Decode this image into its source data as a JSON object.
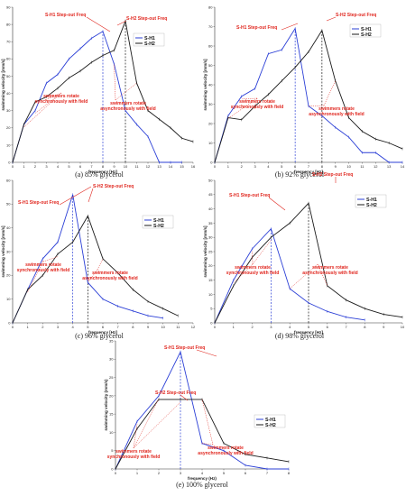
{
  "colors": {
    "s1": "#2b3fd6",
    "s2": "#1a1a1a",
    "annot": "#e0261e",
    "axis": "#333333"
  },
  "chart_data": [
    {
      "type": "line",
      "caption": "(a) 85% glycerol",
      "xlabel": "frequency [Hz]",
      "ylabel": "swimming velocity [mm/s]",
      "xlim": [
        0,
        16
      ],
      "ylim": [
        0,
        90
      ],
      "xticks": [
        0,
        1,
        2,
        3,
        4,
        5,
        6,
        7,
        8,
        9,
        10,
        11,
        12,
        13,
        14,
        15,
        16
      ],
      "yticks": [
        0,
        10,
        20,
        30,
        40,
        50,
        60,
        70,
        80,
        90
      ],
      "series": [
        {
          "name": "S-H1",
          "x": [
            0,
            1,
            2,
            3,
            4,
            5,
            6,
            7,
            8,
            9,
            10,
            11,
            12,
            13,
            14,
            15,
            16
          ],
          "y": [
            0,
            22,
            30,
            46,
            51,
            60,
            66,
            72,
            76,
            57,
            30,
            22,
            15,
            0,
            0,
            0,
            null
          ]
        },
        {
          "name": "S-H2",
          "x": [
            0,
            1,
            2,
            3,
            4,
            5,
            6,
            7,
            8,
            9,
            10,
            11,
            12,
            13,
            14,
            15,
            16
          ],
          "y": [
            0,
            22,
            35,
            38,
            43,
            49,
            53,
            58,
            62,
            65,
            82,
            46,
            30,
            25,
            20,
            14,
            12
          ]
        }
      ],
      "stepout": [
        8,
        10
      ],
      "annotations": [
        "S-H1 Step-out Freq",
        "S-H2 Step-out Freq",
        "swimmers rotate synchronously with field",
        "swimmers rotate asynchronously with field"
      ]
    },
    {
      "type": "line",
      "caption": "(b) 92% glycerol",
      "xlabel": "frequency [Hz]",
      "ylabel": "swimming velocity [mm/s]",
      "xlim": [
        0,
        14
      ],
      "ylim": [
        0,
        80
      ],
      "xticks": [
        0,
        1,
        2,
        3,
        4,
        5,
        6,
        7,
        8,
        9,
        10,
        11,
        12,
        13,
        14
      ],
      "yticks": [
        0,
        10,
        20,
        30,
        40,
        50,
        60,
        70,
        80
      ],
      "series": [
        {
          "name": "S-H1",
          "x": [
            0,
            1,
            2,
            3,
            4,
            5,
            6,
            7,
            8,
            9,
            10,
            11,
            12,
            13,
            14
          ],
          "y": [
            0,
            24,
            34,
            38,
            56,
            58,
            69,
            29,
            24,
            18,
            13,
            5,
            5,
            0,
            0
          ]
        },
        {
          "name": "S-H2",
          "x": [
            0,
            1,
            2,
            3,
            4,
            5,
            6,
            7,
            8,
            9,
            10,
            11,
            12,
            13,
            14
          ],
          "y": [
            0,
            23,
            22,
            29,
            35,
            42,
            49,
            57,
            68,
            42,
            23,
            16,
            12,
            10,
            7
          ]
        }
      ],
      "stepout": [
        6,
        8
      ],
      "annotations": [
        "S-H1 Step-out Freq",
        "S-H2 Step-out Freq",
        "swimmers rotate synchronously with field",
        "swimmers rotate asynchronously with field"
      ]
    },
    {
      "type": "line",
      "caption": "(c) 96% glycerol",
      "xlabel": "frequency [Hz]",
      "ylabel": "swimming velocity [mm/s]",
      "xlim": [
        0,
        12
      ],
      "ylim": [
        0,
        60
      ],
      "xticks": [
        0,
        1,
        2,
        3,
        4,
        5,
        6,
        7,
        8,
        9,
        10,
        11,
        12
      ],
      "yticks": [
        0,
        10,
        20,
        30,
        40,
        50,
        60
      ],
      "series": [
        {
          "name": "S-H1",
          "x": [
            0,
            1,
            2,
            3,
            4,
            5,
            6,
            7,
            8,
            9,
            10,
            11
          ],
          "y": [
            0,
            14,
            27,
            34,
            54,
            17,
            10,
            7,
            5,
            3,
            2,
            null
          ]
        },
        {
          "name": "S-H2",
          "x": [
            0,
            1,
            2,
            3,
            4,
            5,
            6,
            7,
            8,
            9,
            10,
            11
          ],
          "y": [
            0,
            14,
            20,
            29,
            34,
            45,
            27,
            21,
            14,
            9,
            6,
            3
          ]
        }
      ],
      "stepout": [
        4,
        5
      ],
      "annotations": [
        "S-H1 Step-out Freq",
        "S-H2 Step-out Freq",
        "swimmers rotate synchronously with field",
        "swimmers rotate asynchronously with field"
      ]
    },
    {
      "type": "line",
      "caption": "(d) 98% glycerol",
      "xlabel": "frequency [Hz]",
      "ylabel": "swimming velocity [mm/s]",
      "xlim": [
        0,
        10
      ],
      "ylim": [
        0,
        50
      ],
      "xticks": [
        0,
        1,
        2,
        3,
        4,
        5,
        6,
        7,
        8,
        9,
        10
      ],
      "yticks": [
        0,
        5,
        10,
        15,
        20,
        25,
        30,
        35,
        40,
        45,
        50
      ],
      "series": [
        {
          "name": "S-H1",
          "x": [
            0,
            1,
            2,
            3,
            4,
            5,
            6,
            7,
            8,
            9,
            10
          ],
          "y": [
            0,
            15,
            26,
            33,
            12,
            7,
            4,
            2,
            1,
            null,
            null
          ]
        },
        {
          "name": "S-H2",
          "x": [
            0,
            1,
            2,
            3,
            4,
            5,
            6,
            7,
            8,
            9,
            10
          ],
          "y": [
            0,
            13,
            23,
            30,
            35,
            42,
            13,
            8,
            5,
            3,
            2
          ]
        }
      ],
      "stepout": [
        3,
        5
      ],
      "annotations": [
        "S-H1 Step-out Freq",
        "S-H2 Step-out Freq",
        "swimmers rotate synchronously with field",
        "swimmers rotate asynchronously with field"
      ]
    },
    {
      "type": "line",
      "caption": "(e) 100% glycerol",
      "xlabel": "frequency (Hz)",
      "ylabel": "swimming velocity (mm/s)",
      "xlim": [
        0,
        8
      ],
      "ylim": [
        0,
        35
      ],
      "xticks": [
        0,
        1,
        2,
        3,
        4,
        5,
        6,
        7,
        8
      ],
      "yticks": [
        0,
        5,
        10,
        15,
        20,
        25,
        30,
        35
      ],
      "series": [
        {
          "name": "S-H1",
          "x": [
            0,
            1,
            2,
            3,
            4,
            5,
            6,
            7,
            8
          ],
          "y": [
            0,
            13,
            20,
            32,
            7,
            5,
            1,
            0,
            0
          ]
        },
        {
          "name": "S-H2",
          "x": [
            0,
            1,
            2,
            3,
            4,
            5,
            6,
            7,
            8
          ],
          "y": [
            0,
            11,
            19,
            19,
            19,
            7,
            4,
            3,
            2
          ]
        }
      ],
      "stepout": [
        3
      ],
      "annotations": [
        "S-H1 Step-out Freq",
        "S-H2 Step-out Freq",
        "swimmers rotate synchronously with field",
        "swimmers rotate asynchronously with field"
      ]
    }
  ]
}
